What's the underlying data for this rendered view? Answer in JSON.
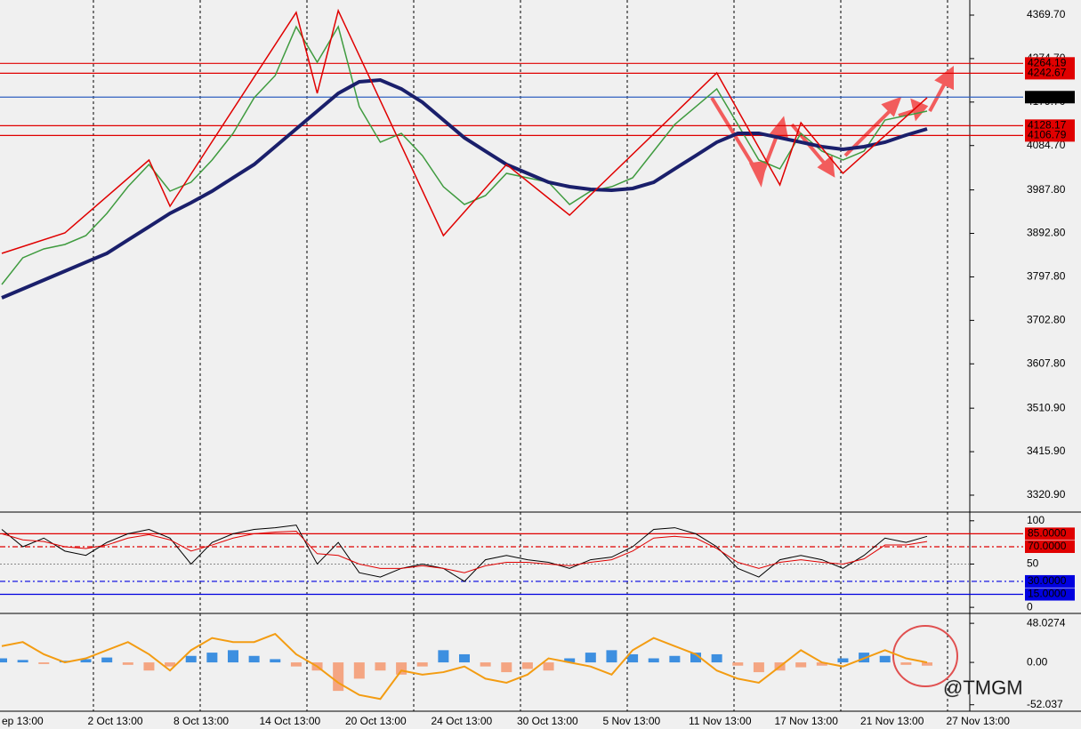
{
  "chart_data": [
    {
      "type": "price",
      "ylim": [
        3285.9,
        4402.7
      ],
      "yticks": [
        {
          "value": 4369.7,
          "label": "4369.70"
        },
        {
          "value": 4274.7,
          "label": "4274.70"
        },
        {
          "value": 4179.7,
          "label": "4179.70"
        },
        {
          "value": 4084.7,
          "label": "4084.70"
        },
        {
          "value": 3987.8,
          "label": "3987.80"
        },
        {
          "value": 3892.8,
          "label": "3892.80"
        },
        {
          "value": 3797.8,
          "label": "3797.80"
        },
        {
          "value": 3702.8,
          "label": "3702.80"
        },
        {
          "value": 3607.8,
          "label": "3607.80"
        },
        {
          "value": 3510.9,
          "label": "3510.90"
        },
        {
          "value": 3415.9,
          "label": "3415.90"
        },
        {
          "value": 3320.9,
          "label": "3320.90"
        }
      ],
      "levels": [
        {
          "value": 4264.19,
          "color": "#e00000"
        },
        {
          "value": 4242.67,
          "color": "#e00000"
        },
        {
          "value": 4190.49,
          "color": "#000000"
        },
        {
          "value": 4128.17,
          "color": "#e00000"
        },
        {
          "value": 4106.79,
          "color": "#e00000"
        }
      ],
      "series": [
        {
          "color": "#3f9b3f",
          "values": [
            3781.2,
            3839.5,
            3858.9,
            3868.6,
            3888.0,
            3936.6,
            3994.8,
            4043.4,
            3985.1,
            4004.5,
            4053.1,
            4111.4,
            4189.1,
            4237.6,
            4344.4,
            4266.8,
            4344.4,
            4169.6,
            4092.0,
            4111.4,
            4062.8,
            3994.8,
            3956.0,
            3975.4,
            4024.0,
            4014.3,
            4004.5,
            3956.0,
            3985.1,
            3994.8,
            4014.3,
            4072.5,
            4130.8,
            4169.6,
            4208.5,
            4130.8,
            4053.1,
            4033.7,
            4111.4,
            4072.5,
            4053.1,
            4072.5,
            4140.5,
            4150.2,
            4159.9
          ]
        },
        {
          "color": "#1a1f6b",
          "values": [
            3752.1,
            3771.5,
            3790.9,
            3810.3,
            3829.8,
            3849.2,
            3878.3,
            3907.4,
            3936.6,
            3959.9,
            3985.1,
            4014.3,
            4043.4,
            4082.2,
            4121.1,
            4159.9,
            4198.8,
            4224.0,
            4227.9,
            4208.5,
            4179.4,
            4140.5,
            4101.7,
            4072.5,
            4043.4,
            4024.0,
            4004.5,
            3994.8,
            3989.0,
            3987.1,
            3991.0,
            4004.5,
            4033.7,
            4062.8,
            4092.0,
            4111.4,
            4111.4,
            4101.7,
            4092.0,
            4082.2,
            4076.4,
            4082.2,
            4092.0,
            4107.5,
            4121.1
          ]
        }
      ],
      "zigzag": {
        "color": "#e00000",
        "x": [
          0,
          3,
          7,
          8,
          14,
          15,
          16,
          21,
          24,
          27,
          34,
          37,
          38,
          40,
          44
        ],
        "values": [
          3849.2,
          3893.8,
          4053.1,
          3952.1,
          4375.5,
          4198.8,
          4379.4,
          3888.0,
          4043.4,
          3932.7,
          4243.4,
          3998.7,
          4134.7,
          4024.0,
          4189.1
        ]
      }
    },
    {
      "type": "oscillator",
      "ylim": [
        -5,
        108
      ],
      "yticks": [
        100,
        50,
        0
      ],
      "levels": [
        {
          "value": 85,
          "label": "85.0000",
          "color": "#e00000"
        },
        {
          "value": 70,
          "label": "70.0000",
          "color": "#e00000"
        },
        {
          "value": 30,
          "label": "30.0000",
          "color": "#0000e0"
        },
        {
          "value": 15,
          "label": "15.0000",
          "color": "#0000e0"
        }
      ],
      "series": [
        {
          "color": "#000000",
          "values": [
            90,
            70,
            80,
            65,
            60,
            75,
            85,
            90,
            80,
            50,
            75,
            85,
            90,
            92,
            95,
            50,
            75,
            40,
            35,
            45,
            50,
            45,
            30,
            55,
            60,
            55,
            52,
            45,
            55,
            58,
            70,
            90,
            92,
            85,
            70,
            45,
            35,
            55,
            60,
            55,
            45,
            60,
            80,
            75,
            82
          ]
        },
        {
          "color": "#e00000",
          "values": [
            85,
            78,
            76,
            70,
            68,
            72,
            80,
            84,
            78,
            65,
            72,
            80,
            85,
            87,
            88,
            62,
            60,
            50,
            45,
            45,
            48,
            45,
            40,
            48,
            52,
            52,
            50,
            48,
            52,
            55,
            65,
            80,
            82,
            80,
            68,
            52,
            45,
            52,
            55,
            52,
            50,
            56,
            72,
            72,
            76
          ]
        }
      ]
    },
    {
      "type": "macd",
      "ylim": [
        -60,
        58
      ],
      "yticks": [
        48.0274,
        {
          "value": 0,
          "label": "0.00"
        },
        -52.037
      ],
      "colors": {
        "positive": "#3d8fe0",
        "negative": "#f4a582"
      },
      "values": [
        5,
        3,
        -2,
        2,
        4,
        6,
        -3,
        -10,
        -5,
        8,
        12,
        15,
        8,
        4,
        -5,
        -10,
        -35,
        -20,
        -10,
        -15,
        -5,
        15,
        10,
        -5,
        -12,
        -8,
        -10,
        5,
        12,
        15,
        10,
        5,
        8,
        12,
        10,
        -4,
        -12,
        -10,
        -6,
        -4,
        5,
        12,
        8,
        -3,
        -4
      ],
      "series": [
        {
          "color": "#f39c12",
          "values": [
            20,
            25,
            10,
            0,
            5,
            15,
            25,
            10,
            -10,
            15,
            30,
            25,
            25,
            35,
            10,
            -5,
            -25,
            -40,
            -45,
            -10,
            -15,
            -12,
            -5,
            -20,
            -25,
            -15,
            5,
            0,
            -5,
            -15,
            15,
            30,
            20,
            10,
            -10,
            -20,
            -25,
            -5,
            15,
            0,
            -5,
            5,
            15,
            5,
            0
          ]
        }
      ]
    }
  ],
  "time_axis": {
    "labels": [
      "ep 13:00",
      "2 Oct 13:00",
      "8 Oct 13:00",
      "14 Oct 13:00",
      "20 Oct 13:00",
      "24 Oct 13:00",
      "30 Oct 13:00",
      "5 Nov 13:00",
      "11 Nov 13:00",
      "17 Nov 13:00",
      "21 Nov 13:00",
      "27 Nov 13:00"
    ]
  },
  "watermark": "@TMGM"
}
